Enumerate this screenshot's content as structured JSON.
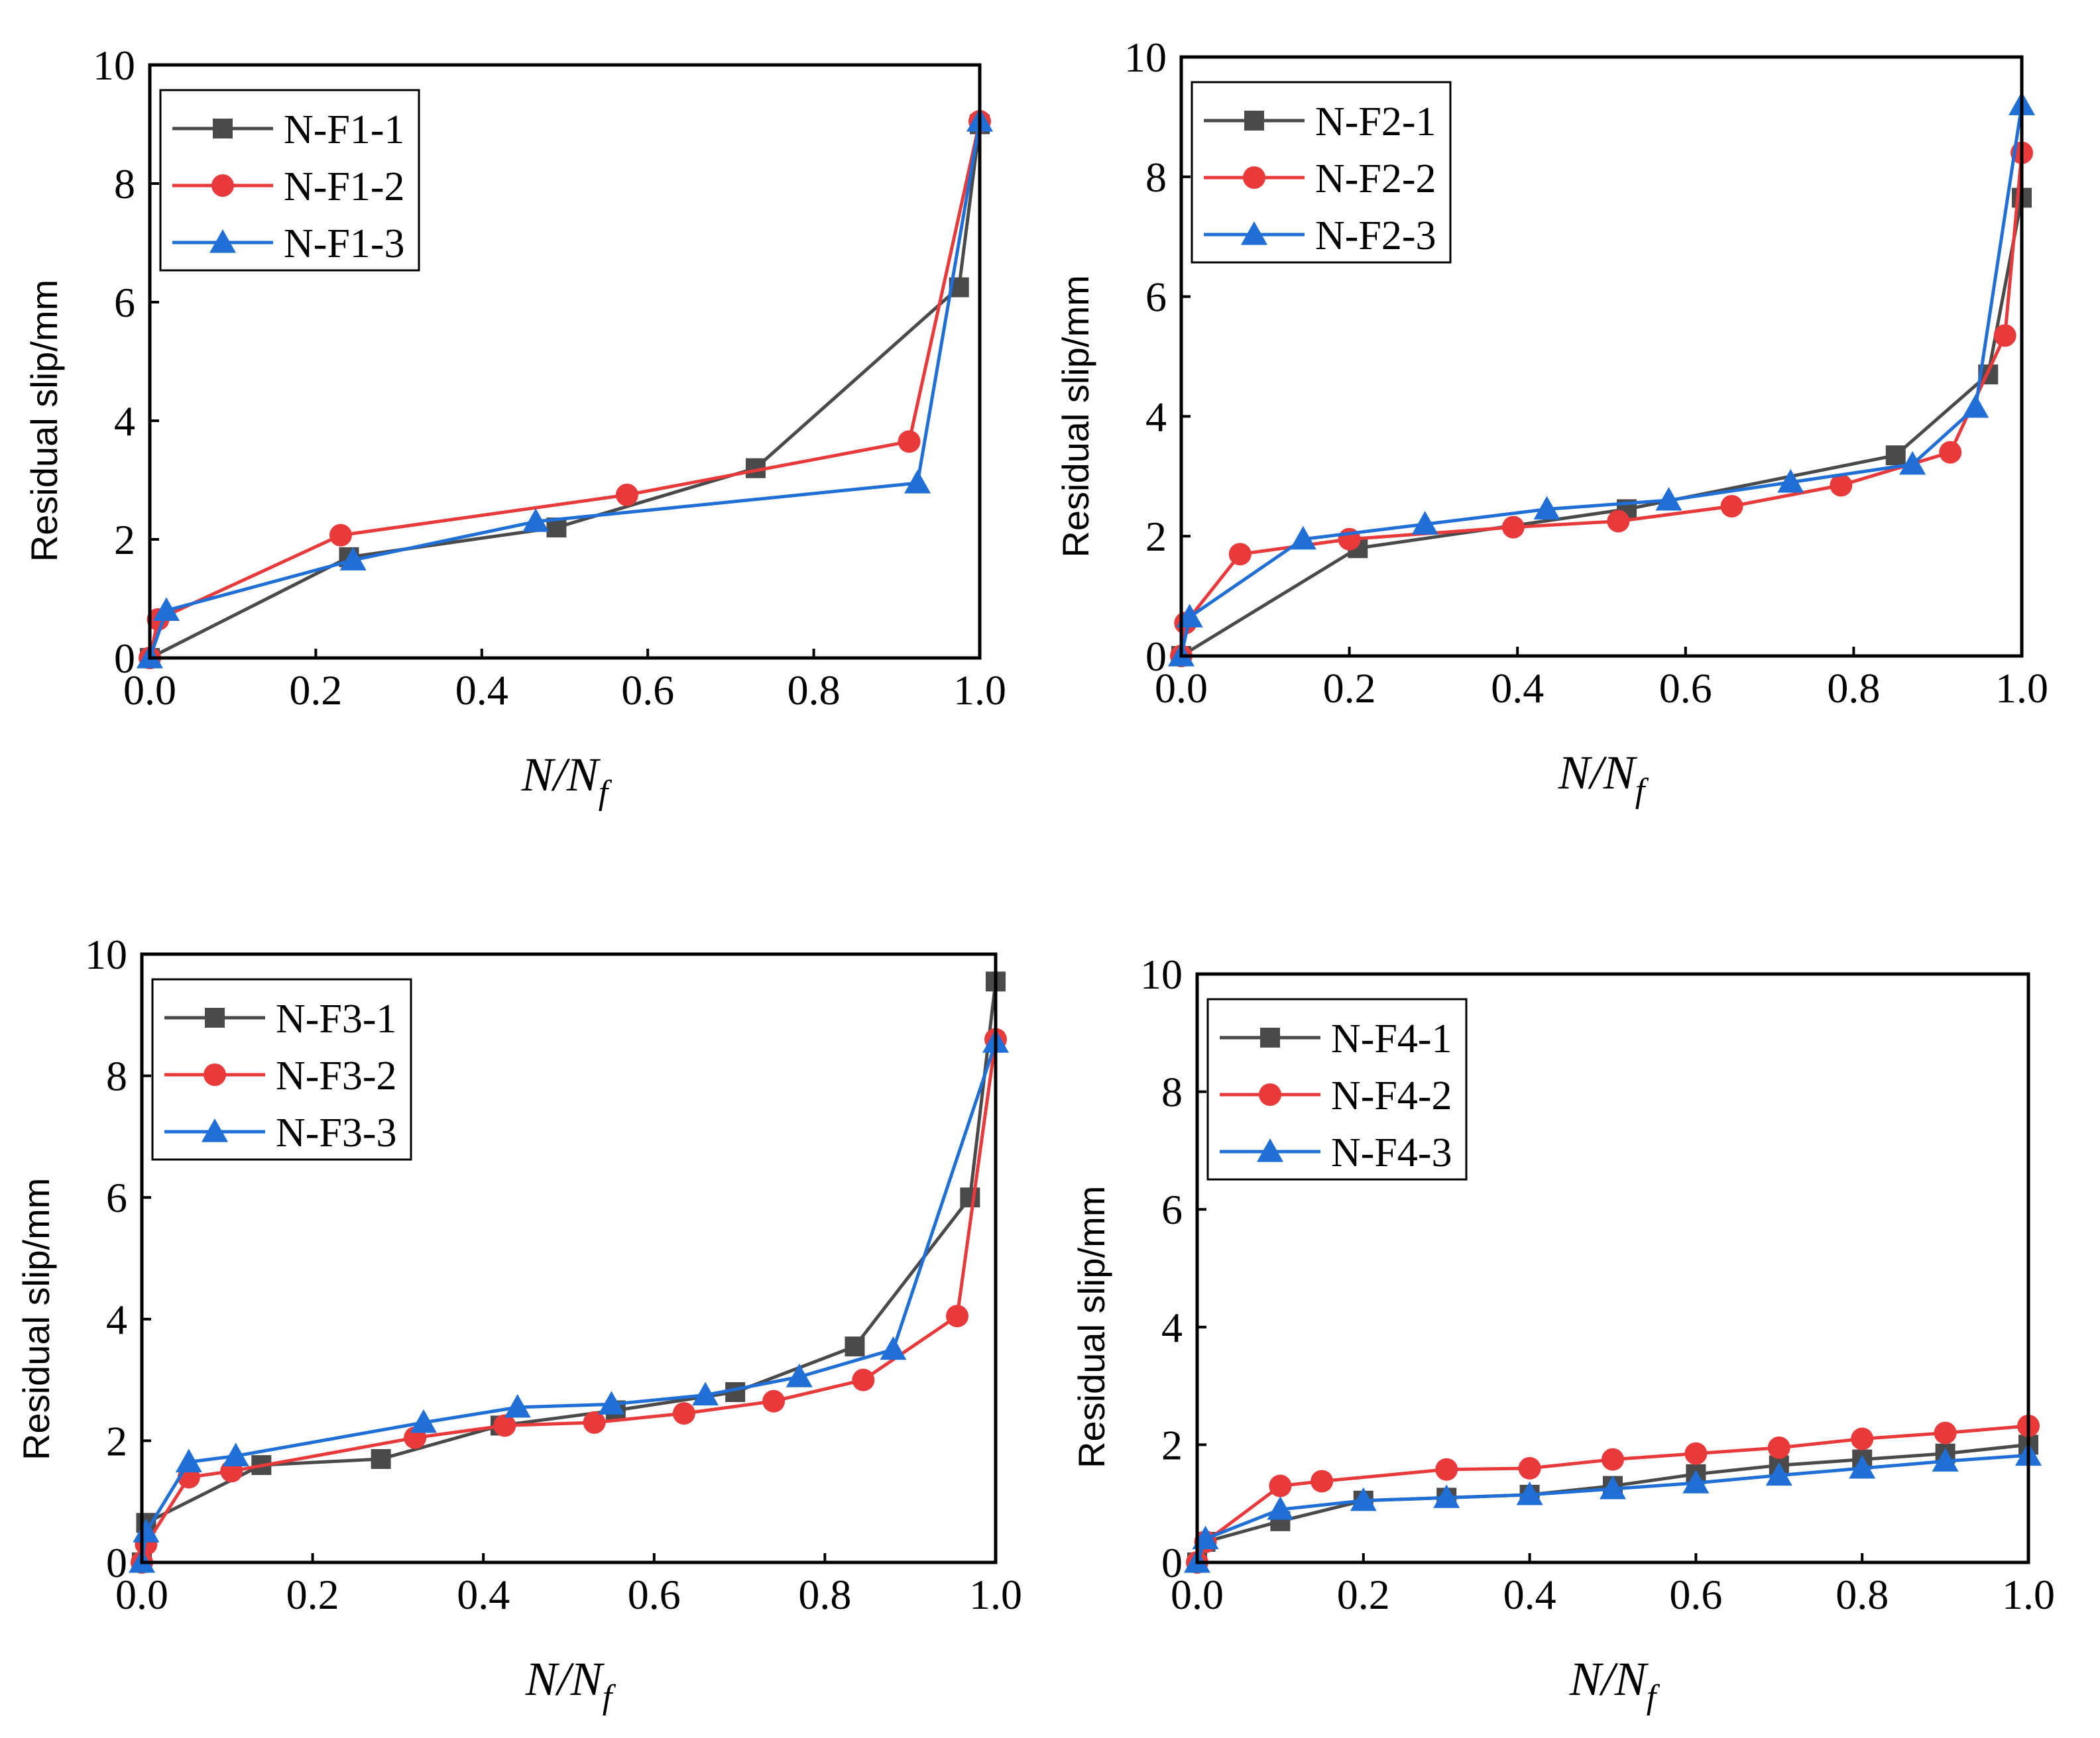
{
  "colors": {
    "series_1": "#4a4a4a",
    "series_2": "#e8393b",
    "series_3": "#1f6fd6",
    "axis": "#000000",
    "background": "#ffffff"
  },
  "markers": [
    "square",
    "circle",
    "triangle"
  ],
  "chart_data": [
    {
      "type": "line",
      "ylabel": "Residual slip/mm",
      "xlabel": {
        "main": "N/N",
        "sub": "f"
      },
      "xlim": [
        0,
        1.0
      ],
      "ylim": [
        0,
        10
      ],
      "xticks": [
        "0.0",
        "0.2",
        "0.4",
        "0.6",
        "0.8",
        "1.0"
      ],
      "yticks": [
        "0",
        "2",
        "4",
        "6",
        "8",
        "10"
      ],
      "legend_position": "top-left",
      "grid": false,
      "series": [
        {
          "name": "N-F1-1",
          "x": [
            0.0,
            0.24,
            0.49,
            0.73,
            0.975,
            1.0
          ],
          "y": [
            0.0,
            1.7,
            2.2,
            3.2,
            6.25,
            9.0
          ]
        },
        {
          "name": "N-F1-2",
          "x": [
            0.0,
            0.01,
            0.23,
            0.575,
            0.915,
            1.0
          ],
          "y": [
            0.0,
            0.65,
            2.07,
            2.75,
            3.65,
            9.05
          ]
        },
        {
          "name": "N-F1-3",
          "x": [
            0.0,
            0.02,
            0.245,
            0.465,
            0.925,
            1.0
          ],
          "y": [
            0.0,
            0.8,
            1.65,
            2.3,
            2.95,
            9.05
          ]
        }
      ]
    },
    {
      "type": "line",
      "ylabel": "Residual slip/mm",
      "xlabel": {
        "main": "N/N",
        "sub": "f"
      },
      "xlim": [
        0,
        1.0
      ],
      "ylim": [
        0,
        10
      ],
      "xticks": [
        "0.0",
        "0.2",
        "0.4",
        "0.6",
        "0.8",
        "1.0"
      ],
      "yticks": [
        "0",
        "2",
        "4",
        "6",
        "8",
        "10"
      ],
      "legend_position": "top-left",
      "grid": false,
      "series": [
        {
          "name": "N-F2-1",
          "x": [
            0.0,
            0.21,
            0.53,
            0.85,
            0.96,
            1.0
          ],
          "y": [
            0.0,
            1.8,
            2.45,
            3.35,
            4.7,
            7.65
          ]
        },
        {
          "name": "N-F2-2",
          "x": [
            0.0,
            0.005,
            0.07,
            0.2,
            0.395,
            0.52,
            0.655,
            0.785,
            0.915,
            0.98,
            1.0
          ],
          "y": [
            0.0,
            0.55,
            1.7,
            1.95,
            2.15,
            2.25,
            2.5,
            2.85,
            3.4,
            5.35,
            8.4
          ]
        },
        {
          "name": "N-F2-3",
          "x": [
            0.0,
            0.01,
            0.145,
            0.29,
            0.435,
            0.58,
            0.725,
            0.87,
            0.945,
            1.0
          ],
          "y": [
            0.0,
            0.65,
            1.95,
            2.2,
            2.45,
            2.6,
            2.9,
            3.2,
            4.15,
            9.2
          ]
        }
      ]
    },
    {
      "type": "line",
      "ylabel": "Residual slip/mm",
      "xlabel": {
        "main": "N/N",
        "sub": "f"
      },
      "xlim": [
        0,
        1.0
      ],
      "ylim": [
        0,
        10
      ],
      "xticks": [
        "0.0",
        "0.2",
        "0.4",
        "0.6",
        "0.8",
        "1.0"
      ],
      "yticks": [
        "0",
        "2",
        "4",
        "6",
        "8",
        "10"
      ],
      "legend_position": "top-left",
      "grid": false,
      "series": [
        {
          "name": "N-F3-1",
          "x": [
            0.0,
            0.005,
            0.14,
            0.28,
            0.42,
            0.555,
            0.695,
            0.835,
            0.97,
            1.0
          ],
          "y": [
            0.0,
            0.65,
            1.6,
            1.7,
            2.25,
            2.5,
            2.8,
            3.55,
            6.0,
            9.55
          ]
        },
        {
          "name": "N-F3-2",
          "x": [
            0.0,
            0.005,
            0.055,
            0.105,
            0.32,
            0.425,
            0.53,
            0.635,
            0.74,
            0.845,
            0.955,
            1.0
          ],
          "y": [
            0.0,
            0.3,
            1.4,
            1.5,
            2.05,
            2.25,
            2.3,
            2.45,
            2.65,
            3.0,
            4.05,
            8.6
          ]
        },
        {
          "name": "N-F3-3",
          "x": [
            0.0,
            0.005,
            0.055,
            0.11,
            0.33,
            0.44,
            0.55,
            0.66,
            0.77,
            0.88,
            1.0
          ],
          "y": [
            0.0,
            0.5,
            1.65,
            1.75,
            2.3,
            2.55,
            2.6,
            2.75,
            3.05,
            3.5,
            8.55
          ]
        }
      ]
    },
    {
      "type": "line",
      "ylabel": "Residual slip/mm",
      "xlabel": {
        "main": "N/N",
        "sub": "f"
      },
      "xlim": [
        0,
        1.0
      ],
      "ylim": [
        0,
        10
      ],
      "xticks": [
        "0.0",
        "0.2",
        "0.4",
        "0.6",
        "0.8",
        "1.0"
      ],
      "yticks": [
        "0",
        "2",
        "4",
        "6",
        "8",
        "10"
      ],
      "legend_position": "top-left",
      "grid": false,
      "series": [
        {
          "name": "N-F4-1",
          "x": [
            0.0,
            0.01,
            0.1,
            0.2,
            0.3,
            0.4,
            0.5,
            0.6,
            0.7,
            0.8,
            0.9,
            1.0
          ],
          "y": [
            0.0,
            0.35,
            0.7,
            1.05,
            1.1,
            1.15,
            1.3,
            1.5,
            1.65,
            1.75,
            1.85,
            2.0
          ]
        },
        {
          "name": "N-F4-2",
          "x": [
            0.0,
            0.01,
            0.1,
            0.15,
            0.3,
            0.4,
            0.5,
            0.6,
            0.7,
            0.8,
            0.9,
            1.0
          ],
          "y": [
            0.0,
            0.35,
            1.3,
            1.38,
            1.58,
            1.6,
            1.75,
            1.85,
            1.95,
            2.1,
            2.2,
            2.32
          ]
        },
        {
          "name": "N-F4-3",
          "x": [
            0.0,
            0.01,
            0.1,
            0.2,
            0.3,
            0.4,
            0.5,
            0.6,
            0.7,
            0.8,
            0.9,
            1.0
          ],
          "y": [
            0.0,
            0.4,
            0.9,
            1.05,
            1.1,
            1.15,
            1.25,
            1.35,
            1.48,
            1.6,
            1.72,
            1.82
          ]
        }
      ]
    }
  ]
}
